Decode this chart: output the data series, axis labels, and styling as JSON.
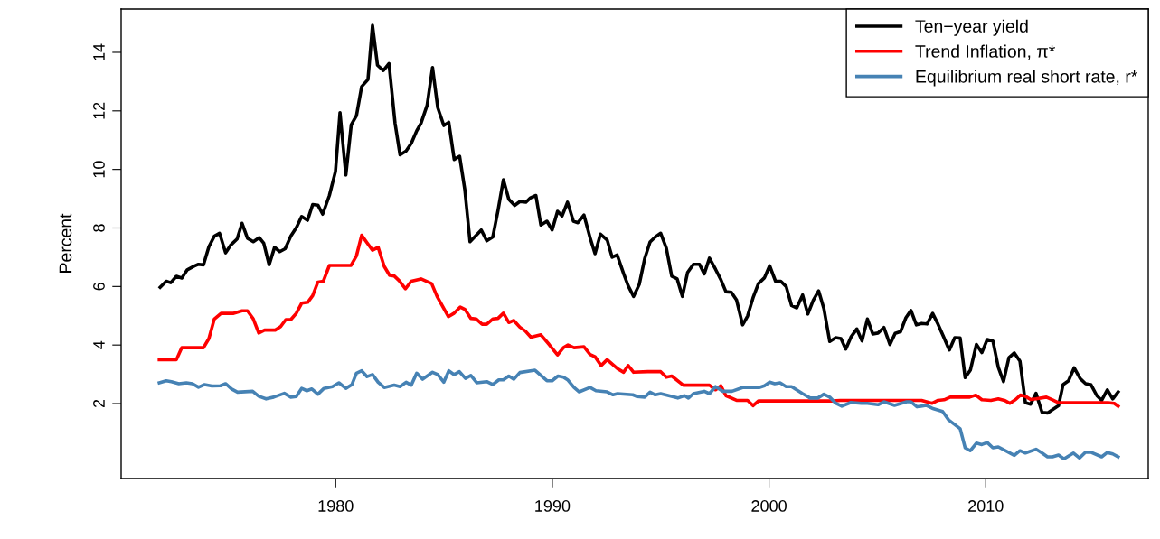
{
  "chart_data": {
    "type": "line",
    "ylabel": "Percent",
    "xlim": [
      1970.1,
      2017.5
    ],
    "ylim": [
      -0.56,
      15.48
    ],
    "xticks": [
      1980,
      1990,
      2000,
      2010
    ],
    "yticks": [
      2,
      4,
      6,
      8,
      10,
      12,
      14
    ],
    "grid": false,
    "legend": "top right",
    "line_style": "solid",
    "marker": "none",
    "series": [
      {
        "name": "Ten−year yield",
        "color": "#000000",
        "x": [
          1971.9,
          1972.18,
          1972.39,
          1972.65,
          1972.9,
          1973.15,
          1973.46,
          1973.67,
          1973.9,
          1974.15,
          1974.4,
          1974.64,
          1974.92,
          1975.15,
          1975.45,
          1975.68,
          1975.93,
          1976.2,
          1976.47,
          1976.68,
          1976.93,
          1977.18,
          1977.42,
          1977.67,
          1977.93,
          1978.2,
          1978.43,
          1978.7,
          1978.94,
          1979.18,
          1979.4,
          1979.71,
          1979.99,
          1980.2,
          1980.47,
          1980.72,
          1980.96,
          1981.2,
          1981.49,
          1981.7,
          1981.93,
          1982.2,
          1982.46,
          1982.74,
          1982.97,
          1983.25,
          1983.49,
          1983.74,
          1983.94,
          1984.22,
          1984.47,
          1984.71,
          1984.99,
          1985.22,
          1985.47,
          1985.72,
          1985.96,
          1986.2,
          1986.72,
          1986.97,
          1987.25,
          1987.49,
          1987.74,
          1987.99,
          1988.26,
          1988.5,
          1988.78,
          1988.99,
          1989.24,
          1989.47,
          1989.75,
          1989.99,
          1990.24,
          1990.45,
          1990.7,
          1990.97,
          1991.18,
          1991.46,
          1991.74,
          1991.97,
          1992.22,
          1992.53,
          1992.76,
          1992.99,
          1993.29,
          1993.5,
          1993.75,
          1994.01,
          1994.26,
          1994.51,
          1994.75,
          1995.0,
          1995.26,
          1995.51,
          1995.76,
          1996.0,
          1996.24,
          1996.51,
          1996.79,
          1997.01,
          1997.25,
          1997.53,
          1997.78,
          1998.01,
          1998.26,
          1998.5,
          1998.78,
          1999.01,
          1999.26,
          1999.51,
          1999.79,
          2000.03,
          2000.3,
          2000.54,
          2000.79,
          2001.04,
          2001.28,
          2001.55,
          2001.79,
          2002.04,
          2002.29,
          2002.53,
          2002.8,
          2003.08,
          2003.32,
          2003.54,
          2003.78,
          2004.05,
          2004.29,
          2004.54,
          2004.79,
          2005.03,
          2005.3,
          2005.58,
          2005.82,
          2006.07,
          2006.32,
          2006.55,
          2006.8,
          2007.04,
          2007.29,
          2007.55,
          2007.8,
          2008.05,
          2008.32,
          2008.57,
          2008.82,
          2009.05,
          2009.29,
          2009.57,
          2009.82,
          2010.07,
          2010.33,
          2010.58,
          2010.82,
          2011.07,
          2011.32,
          2011.58,
          2011.83,
          2012.07,
          2012.32,
          2012.6,
          2012.85,
          2013.36,
          2013.57,
          2013.82,
          2014.08,
          2014.36,
          2014.61,
          2014.85,
          2015.13,
          2015.35,
          2015.61,
          2015.86,
          2016.11
        ],
        "values": [
          5.97,
          6.18,
          6.13,
          6.35,
          6.29,
          6.57,
          6.69,
          6.76,
          6.74,
          7.36,
          7.72,
          7.82,
          7.15,
          7.41,
          7.62,
          8.16,
          7.65,
          7.53,
          7.67,
          7.48,
          6.74,
          7.34,
          7.19,
          7.29,
          7.72,
          8.03,
          8.39,
          8.26,
          8.8,
          8.78,
          8.47,
          9.11,
          9.93,
          11.94,
          9.81,
          11.53,
          11.84,
          12.83,
          13.07,
          14.92,
          13.56,
          13.38,
          13.62,
          11.58,
          10.5,
          10.63,
          10.89,
          11.32,
          11.58,
          12.19,
          13.48,
          12.11,
          11.5,
          11.61,
          10.34,
          10.45,
          9.31,
          7.53,
          7.93,
          7.56,
          7.69,
          8.59,
          9.65,
          8.98,
          8.77,
          8.9,
          8.88,
          9.03,
          9.11,
          8.1,
          8.23,
          7.93,
          8.57,
          8.41,
          8.88,
          8.23,
          8.18,
          8.44,
          7.67,
          7.12,
          7.79,
          7.59,
          7.0,
          7.08,
          6.44,
          6.02,
          5.66,
          6.07,
          6.95,
          7.52,
          7.69,
          7.82,
          7.31,
          6.35,
          6.26,
          5.66,
          6.48,
          6.76,
          6.76,
          6.43,
          6.97,
          6.59,
          6.23,
          5.82,
          5.8,
          5.54,
          4.69,
          4.99,
          5.61,
          6.1,
          6.3,
          6.71,
          6.18,
          6.18,
          6.0,
          5.35,
          5.27,
          5.71,
          5.06,
          5.53,
          5.85,
          5.25,
          4.12,
          4.25,
          4.22,
          3.86,
          4.27,
          4.55,
          4.14,
          4.89,
          4.38,
          4.41,
          4.6,
          4.02,
          4.4,
          4.46,
          4.94,
          5.18,
          4.69,
          4.74,
          4.72,
          5.08,
          4.71,
          4.29,
          3.83,
          4.25,
          4.24,
          2.89,
          3.14,
          4.02,
          3.74,
          4.19,
          4.14,
          3.24,
          2.75,
          3.57,
          3.73,
          3.45,
          2.03,
          1.98,
          2.35,
          1.7,
          1.68,
          1.93,
          2.65,
          2.78,
          3.22,
          2.85,
          2.68,
          2.65,
          2.27,
          2.11,
          2.47,
          2.16,
          2.4
        ]
      },
      {
        "name": "Trend Inflation, π*",
        "color": "#ff0000",
        "x": [
          1971.86,
          1972.65,
          1972.9,
          1973.9,
          1974.15,
          1974.4,
          1974.71,
          1975.26,
          1975.68,
          1975.93,
          1976.2,
          1976.45,
          1976.72,
          1977.21,
          1977.46,
          1977.7,
          1977.93,
          1978.18,
          1978.43,
          1978.71,
          1978.94,
          1979.18,
          1979.43,
          1979.71,
          1980.71,
          1980.96,
          1981.2,
          1981.45,
          1981.7,
          1981.96,
          1982.24,
          1982.49,
          1982.7,
          1982.93,
          1983.22,
          1983.49,
          1983.94,
          1984.43,
          1984.68,
          1985.2,
          1985.47,
          1985.75,
          1985.96,
          1986.24,
          1986.49,
          1986.76,
          1986.97,
          1987.25,
          1987.49,
          1987.74,
          1987.99,
          1988.22,
          1988.5,
          1988.75,
          1989.01,
          1989.47,
          1989.85,
          1990.24,
          1990.51,
          1990.72,
          1991.0,
          1991.46,
          1991.74,
          1991.97,
          1992.25,
          1992.53,
          1993.01,
          1993.29,
          1993.5,
          1993.75,
          1994.4,
          1995.0,
          1995.26,
          1995.51,
          1996.04,
          1997.25,
          1997.53,
          1997.78,
          1998.01,
          1998.5,
          1999.01,
          1999.26,
          1999.51,
          2002.88,
          2003.29,
          2007.04,
          2007.53,
          2007.8,
          2008.08,
          2008.36,
          2009.26,
          2009.54,
          2009.82,
          2010.24,
          2010.58,
          2010.86,
          2011.11,
          2011.38,
          2011.6,
          2011.83,
          2012.07,
          2012.32,
          2012.8,
          2013.08,
          2013.36,
          2015.65,
          2015.93,
          2016.11
        ],
        "values": [
          3.5,
          3.5,
          3.91,
          3.91,
          4.22,
          4.89,
          5.08,
          5.08,
          5.17,
          5.17,
          4.89,
          4.41,
          4.51,
          4.51,
          4.63,
          4.87,
          4.87,
          5.08,
          5.43,
          5.46,
          5.69,
          6.15,
          6.18,
          6.72,
          6.72,
          7.05,
          7.75,
          7.49,
          7.24,
          7.34,
          6.69,
          6.38,
          6.36,
          6.2,
          5.92,
          6.18,
          6.26,
          6.1,
          5.66,
          4.97,
          5.09,
          5.3,
          5.22,
          4.91,
          4.89,
          4.71,
          4.71,
          4.89,
          4.91,
          5.09,
          4.77,
          4.84,
          4.61,
          4.48,
          4.27,
          4.35,
          4.02,
          3.66,
          3.91,
          4.0,
          3.91,
          3.94,
          3.68,
          3.6,
          3.3,
          3.5,
          3.19,
          3.07,
          3.3,
          3.07,
          3.09,
          3.09,
          2.9,
          2.94,
          2.63,
          2.63,
          2.47,
          2.61,
          2.27,
          2.11,
          2.11,
          1.93,
          2.09,
          2.09,
          2.11,
          2.11,
          2.01,
          2.11,
          2.13,
          2.22,
          2.22,
          2.29,
          2.13,
          2.11,
          2.16,
          2.11,
          2.01,
          2.14,
          2.29,
          2.25,
          2.14,
          2.16,
          2.22,
          2.13,
          2.03,
          2.03,
          2.01,
          1.91
        ]
      },
      {
        "name": "Equilibrium real short rate, r*",
        "color": "#4682b4",
        "x": [
          1971.86,
          1972.18,
          1972.42,
          1972.76,
          1973.11,
          1973.39,
          1973.67,
          1973.95,
          1974.29,
          1974.68,
          1974.92,
          1975.2,
          1975.47,
          1976.17,
          1976.45,
          1976.79,
          1977.14,
          1977.63,
          1977.93,
          1978.18,
          1978.43,
          1978.67,
          1978.9,
          1979.18,
          1979.46,
          1979.85,
          1980.15,
          1980.47,
          1980.75,
          1980.96,
          1981.2,
          1981.45,
          1981.7,
          1981.96,
          1982.24,
          1982.7,
          1982.97,
          1983.25,
          1983.49,
          1983.74,
          1984.01,
          1984.47,
          1984.71,
          1984.99,
          1985.22,
          1985.47,
          1985.71,
          1985.99,
          1986.24,
          1986.51,
          1986.97,
          1987.25,
          1987.53,
          1987.74,
          1987.99,
          1988.22,
          1988.5,
          1989.2,
          1989.75,
          1989.99,
          1990.26,
          1990.51,
          1990.72,
          1991.0,
          1991.24,
          1991.74,
          1992.01,
          1992.53,
          1992.8,
          1993.01,
          1993.71,
          1993.92,
          1994.26,
          1994.51,
          1994.75,
          1995.0,
          1995.79,
          1996.1,
          1996.28,
          1996.51,
          1997.01,
          1997.25,
          1997.53,
          1997.87,
          1998.29,
          1998.78,
          1999.54,
          1999.79,
          2000.03,
          2000.26,
          2000.51,
          2000.79,
          2001.04,
          2001.55,
          2001.9,
          2002.25,
          2002.53,
          2002.8,
          2003.08,
          2003.36,
          2003.78,
          2004.26,
          2004.54,
          2005.03,
          2005.3,
          2005.79,
          2006.35,
          2006.55,
          2006.83,
          2007.25,
          2007.53,
          2008.01,
          2008.29,
          2008.82,
          2009.05,
          2009.29,
          2009.57,
          2009.82,
          2010.07,
          2010.33,
          2010.58,
          2011.32,
          2011.58,
          2011.83,
          2012.32,
          2012.6,
          2012.85,
          2013.08,
          2013.36,
          2013.61,
          2014.05,
          2014.33,
          2014.61,
          2014.85,
          2015.35,
          2015.61,
          2015.86,
          2016.11
        ],
        "values": [
          2.71,
          2.78,
          2.75,
          2.68,
          2.71,
          2.68,
          2.56,
          2.65,
          2.6,
          2.61,
          2.68,
          2.5,
          2.39,
          2.42,
          2.25,
          2.16,
          2.22,
          2.35,
          2.22,
          2.24,
          2.52,
          2.44,
          2.5,
          2.32,
          2.52,
          2.58,
          2.71,
          2.52,
          2.65,
          3.04,
          3.12,
          2.92,
          2.99,
          2.73,
          2.55,
          2.63,
          2.58,
          2.73,
          2.63,
          3.04,
          2.83,
          3.07,
          2.99,
          2.73,
          3.12,
          2.99,
          3.09,
          2.86,
          2.96,
          2.71,
          2.75,
          2.65,
          2.81,
          2.81,
          2.94,
          2.83,
          3.06,
          3.14,
          2.78,
          2.78,
          2.94,
          2.9,
          2.8,
          2.55,
          2.4,
          2.55,
          2.44,
          2.4,
          2.3,
          2.34,
          2.3,
          2.24,
          2.22,
          2.39,
          2.3,
          2.34,
          2.19,
          2.27,
          2.19,
          2.34,
          2.42,
          2.34,
          2.58,
          2.42,
          2.42,
          2.55,
          2.55,
          2.61,
          2.73,
          2.68,
          2.71,
          2.58,
          2.58,
          2.34,
          2.19,
          2.19,
          2.32,
          2.22,
          2.01,
          1.91,
          2.04,
          2.01,
          2.01,
          1.96,
          2.06,
          1.94,
          2.06,
          2.06,
          1.89,
          1.94,
          1.84,
          1.73,
          1.44,
          1.14,
          0.49,
          0.39,
          0.65,
          0.6,
          0.67,
          0.49,
          0.52,
          0.23,
          0.39,
          0.31,
          0.44,
          0.31,
          0.18,
          0.18,
          0.24,
          0.11,
          0.31,
          0.14,
          0.34,
          0.34,
          0.18,
          0.33,
          0.28,
          0.18
        ]
      }
    ]
  }
}
